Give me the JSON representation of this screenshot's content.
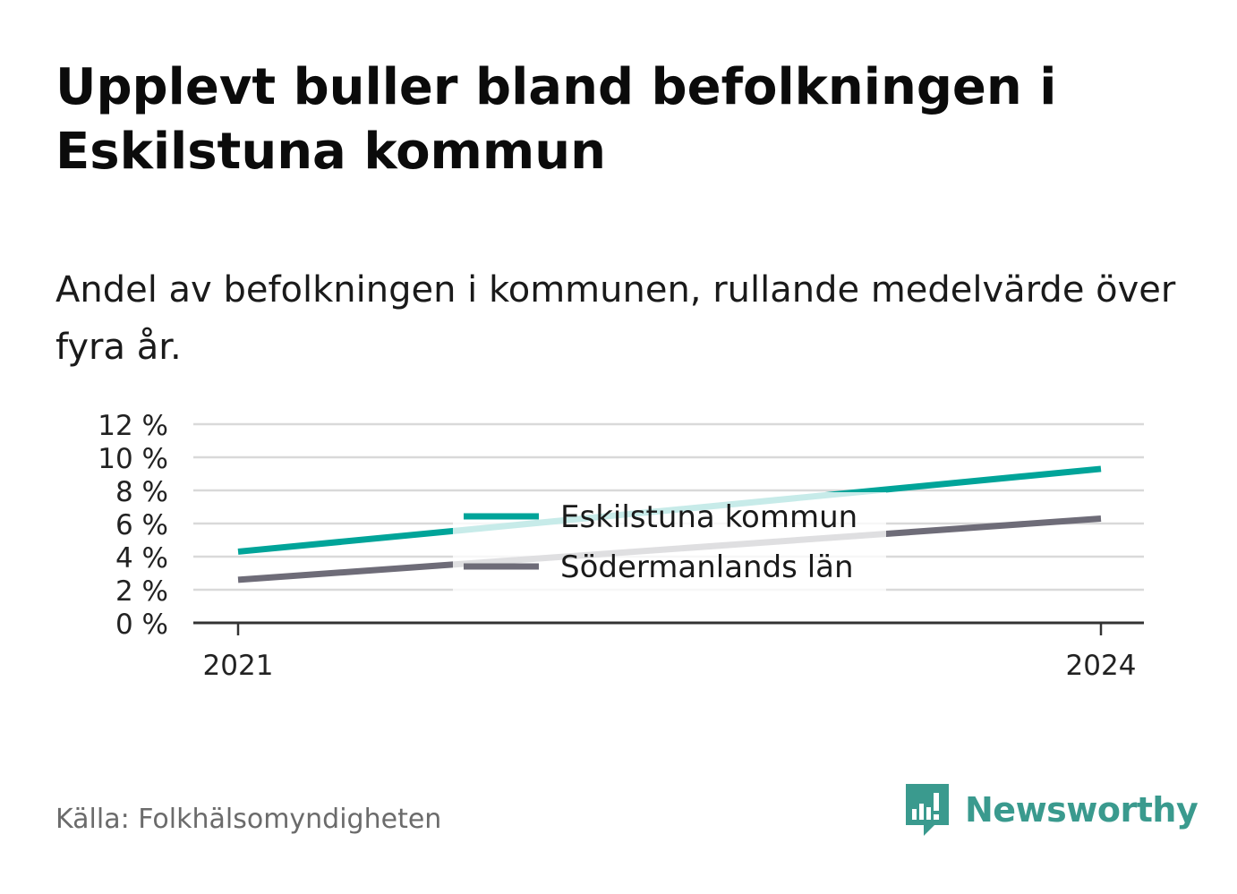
{
  "header": {
    "title": "Upplevt buller bland befolkningen i Eskilstuna kommun",
    "subtitle": "Andel av befolkningen i kommunen, rullande medelvärde över fyra år."
  },
  "footer": {
    "source": "Källa: Folkhälsomyndigheten",
    "brand": "Newsworthy",
    "brand_icon": "bar-chart-speech-bubble-icon"
  },
  "colors": {
    "eskilstuna": "#00a499",
    "sodermanland": "#6e6c78",
    "grid": "#d9d9d9",
    "axis": "#333333",
    "brand": "#3a9a8e"
  },
  "chart_data": {
    "type": "line",
    "x": [
      "2021",
      "2024"
    ],
    "ylim": [
      0,
      12
    ],
    "yticks": [
      "0 %",
      "2 %",
      "4 %",
      "6 %",
      "8 %",
      "10 %",
      "12 %"
    ],
    "grid": true,
    "legend_position": "center",
    "series": [
      {
        "name": "Eskilstuna kommun",
        "values": [
          4.3,
          9.3
        ]
      },
      {
        "name": "Södermanlands län",
        "values": [
          2.6,
          6.3
        ]
      }
    ]
  }
}
